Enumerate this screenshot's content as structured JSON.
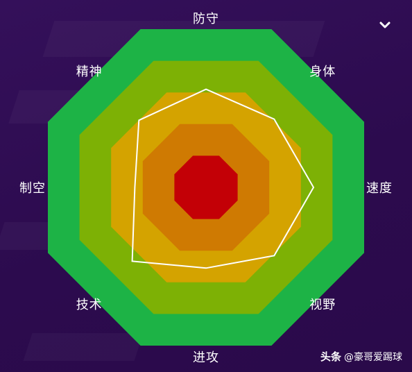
{
  "chart_data": {
    "type": "radar",
    "axes": [
      "防守",
      "身体",
      "速度",
      "视野",
      "进攻",
      "技术",
      "制空",
      "精神"
    ],
    "values": [
      0.62,
      0.61,
      0.68,
      0.61,
      0.51,
      0.66,
      0.45,
      0.6
    ],
    "rmax": 1,
    "rings": 5,
    "ring_colors": [
      "#1db346",
      "#7db105",
      "#d4a300",
      "#cf7a02",
      "#c30006"
    ],
    "series_color": "#ffffff"
  },
  "watermark": {
    "brand": "头条",
    "handle": "@豪哥爱踢球"
  },
  "icons": {
    "menu": "chevron-down-icon"
  }
}
